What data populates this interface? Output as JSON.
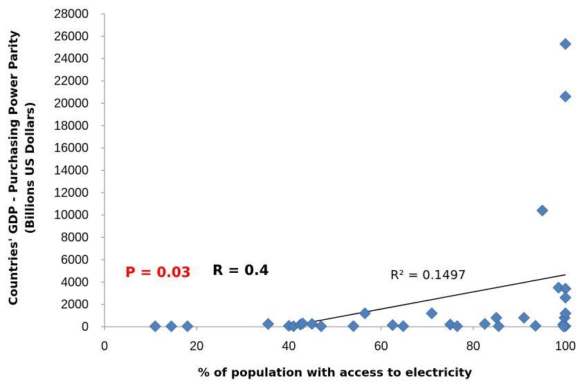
{
  "colors": {
    "marker": "#4F81BD",
    "marker_stroke": "#3A6698",
    "p_value": "#FF0000",
    "r_value": "#000000",
    "trendline": "#000000"
  },
  "annotations": {
    "p_value": "P = 0.03",
    "r_value": "R = 0.4",
    "r_squared": "R² = 0.1497"
  },
  "chart_data": {
    "type": "scatter",
    "title": "",
    "xlabel": "% of population with access to electricity",
    "ylabel_line1": "Countries' GDP - Purchasing Power Parity",
    "ylabel_line2": "(Billions US Dollars)",
    "xlim": [
      0,
      100
    ],
    "ylim": [
      0,
      28000
    ],
    "x_ticks": [
      "0",
      "20",
      "40",
      "60",
      "80",
      "100"
    ],
    "y_ticks": [
      "0",
      "2000",
      "4000",
      "6000",
      "8000",
      "10000",
      "12000",
      "14000",
      "16000",
      "18000",
      "20000",
      "22000",
      "24000",
      "26000",
      "28000"
    ],
    "grid": false,
    "legend": "none",
    "marker": "diamond",
    "points": [
      {
        "x": 11,
        "y": 40
      },
      {
        "x": 14.5,
        "y": 40
      },
      {
        "x": 18,
        "y": 40
      },
      {
        "x": 35.5,
        "y": 250
      },
      {
        "x": 40,
        "y": 80
      },
      {
        "x": 41,
        "y": 40
      },
      {
        "x": 42.5,
        "y": 200
      },
      {
        "x": 43,
        "y": 300
      },
      {
        "x": 45,
        "y": 250
      },
      {
        "x": 47,
        "y": 40
      },
      {
        "x": 54,
        "y": 60
      },
      {
        "x": 56.5,
        "y": 1200
      },
      {
        "x": 62.5,
        "y": 150
      },
      {
        "x": 64.8,
        "y": 50
      },
      {
        "x": 71,
        "y": 1200
      },
      {
        "x": 75,
        "y": 200
      },
      {
        "x": 76.5,
        "y": 50
      },
      {
        "x": 82.5,
        "y": 250
      },
      {
        "x": 85,
        "y": 800
      },
      {
        "x": 85.5,
        "y": 50
      },
      {
        "x": 91,
        "y": 800
      },
      {
        "x": 93.5,
        "y": 80
      },
      {
        "x": 95,
        "y": 10400
      },
      {
        "x": 98.5,
        "y": 3500
      },
      {
        "x": 99.5,
        "y": 200
      },
      {
        "x": 99.8,
        "y": 800
      },
      {
        "x": 100,
        "y": 25300
      },
      {
        "x": 100,
        "y": 20600
      },
      {
        "x": 100,
        "y": 3400
      },
      {
        "x": 100,
        "y": 2600
      },
      {
        "x": 100,
        "y": 1200
      },
      {
        "x": 100,
        "y": 50
      },
      {
        "x": 99.6,
        "y": 30
      }
    ],
    "trendline": {
      "x": [
        40,
        100
      ],
      "y": [
        50,
        4650
      ]
    }
  }
}
